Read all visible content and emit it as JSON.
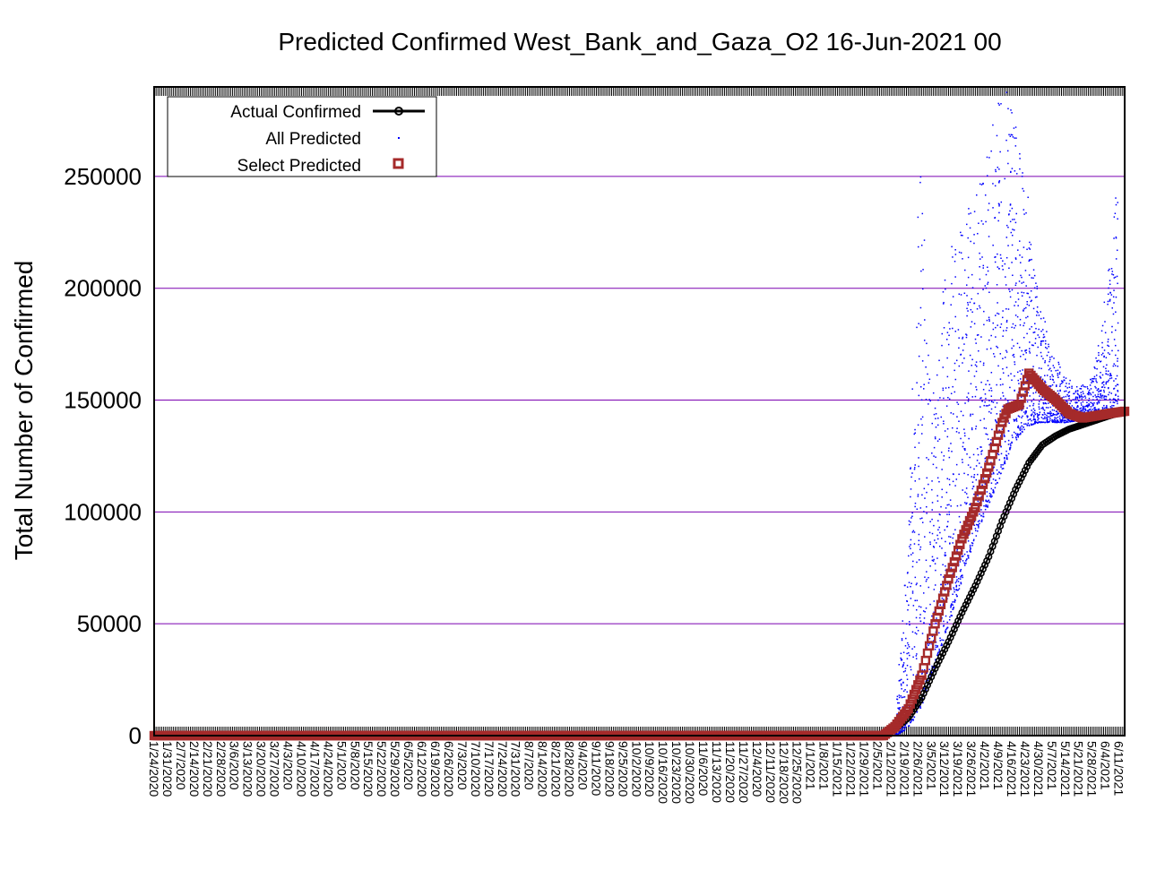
{
  "chart_data": {
    "type": "scatter",
    "title": "Predicted Confirmed West_Bank_and_Gaza_O2 16-Jun-2021 00",
    "ylabel": "Total Number of Confirmed",
    "xlabel": "",
    "ylim": [
      0,
      290000
    ],
    "x_range": [
      "1/24/2020",
      "6/14/2021"
    ],
    "yticks": [
      0,
      50000,
      100000,
      150000,
      200000,
      250000
    ],
    "grid": "horizontal",
    "grid_color": "#7a00b0",
    "legend_position": "top-left",
    "x_tick_labels": [
      "1/24/2020",
      "1/31/2020",
      "2/7/2020",
      "2/14/2020",
      "2/21/2020",
      "2/28/2020",
      "3/6/2020",
      "3/13/2020",
      "3/20/2020",
      "3/27/2020",
      "4/3/2020",
      "4/10/2020",
      "4/17/2020",
      "4/24/2020",
      "5/1/2020",
      "5/8/2020",
      "5/15/2020",
      "5/22/2020",
      "5/29/2020",
      "6/5/2020",
      "6/12/2020",
      "6/19/2020",
      "6/26/2020",
      "7/3/2020",
      "7/10/2020",
      "7/17/2020",
      "7/24/2020",
      "7/31/2020",
      "8/7/2020",
      "8/14/2020",
      "8/21/2020",
      "8/28/2020",
      "9/4/2020",
      "9/11/2020",
      "9/18/2020",
      "9/25/2020",
      "10/2/2020",
      "10/9/2020",
      "10/16/2020",
      "10/23/2020",
      "10/30/2020",
      "11/6/2020",
      "11/13/2020",
      "11/20/2020",
      "11/27/2020",
      "12/4/2020",
      "12/11/2020",
      "12/18/2020",
      "12/25/2020",
      "1/1/2021",
      "1/8/2021",
      "1/15/2021",
      "1/22/2021",
      "1/29/2021",
      "2/5/2021",
      "2/12/2021",
      "2/19/2021",
      "2/26/2021",
      "3/5/2021",
      "3/12/2021",
      "3/19/2021",
      "3/26/2021",
      "4/2/2021",
      "4/9/2021",
      "4/16/2021",
      "4/23/2021",
      "4/30/2021",
      "5/7/2021",
      "5/14/2021",
      "5/21/2021",
      "5/28/2021",
      "6/4/2021",
      "6/11/2021"
    ],
    "series": [
      {
        "name": "Actual Confirmed",
        "color": "#000000",
        "marker": "circle-line",
        "points": [
          [
            "1/24/2020",
            0
          ],
          [
            "2/7/2021",
            0
          ],
          [
            "2/14/2021",
            3000
          ],
          [
            "2/21/2021",
            8000
          ],
          [
            "2/28/2021",
            17000
          ],
          [
            "3/7/2021",
            30000
          ],
          [
            "3/14/2021",
            42000
          ],
          [
            "3/21/2021",
            55000
          ],
          [
            "3/28/2021",
            67000
          ],
          [
            "4/4/2021",
            80000
          ],
          [
            "4/11/2021",
            96000
          ],
          [
            "4/18/2021",
            110000
          ],
          [
            "4/25/2021",
            122000
          ],
          [
            "5/2/2021",
            130000
          ],
          [
            "5/9/2021",
            134000
          ],
          [
            "5/16/2021",
            137000
          ],
          [
            "5/23/2021",
            139000
          ],
          [
            "5/30/2021",
            141000
          ],
          [
            "6/6/2021",
            143000
          ],
          [
            "6/14/2021",
            145000
          ]
        ]
      },
      {
        "name": "All Predicted",
        "color": "#0000ff",
        "marker": "dot",
        "envelope": [
          [
            "2/14/2021",
            0,
            8000
          ],
          [
            "2/20/2021",
            3000,
            80000
          ],
          [
            "2/27/2021",
            12000,
            260000
          ],
          [
            "3/5/2021",
            28000,
            150000
          ],
          [
            "3/12/2021",
            45000,
            210000
          ],
          [
            "3/19/2021",
            65000,
            230000
          ],
          [
            "3/26/2021",
            85000,
            240000
          ],
          [
            "4/2/2021",
            100000,
            260000
          ],
          [
            "4/9/2021",
            115000,
            285000
          ],
          [
            "4/16/2021",
            130000,
            290000
          ],
          [
            "4/23/2021",
            138000,
            250000
          ],
          [
            "4/30/2021",
            140000,
            195000
          ],
          [
            "5/7/2021",
            140000,
            172000
          ],
          [
            "5/14/2021",
            140000,
            160000
          ],
          [
            "5/21/2021",
            141000,
            156000
          ],
          [
            "5/28/2021",
            142000,
            160000
          ],
          [
            "6/4/2021",
            143000,
            200000
          ],
          [
            "6/11/2021",
            144000,
            260000
          ]
        ]
      },
      {
        "name": "Select Predicted",
        "color": "#a52a2a",
        "marker": "open-square",
        "points": [
          [
            "1/24/2020",
            0
          ],
          [
            "2/8/2021",
            0
          ],
          [
            "2/14/2021",
            4000
          ],
          [
            "2/21/2021",
            12000
          ],
          [
            "2/28/2021",
            27000
          ],
          [
            "3/7/2021",
            50000
          ],
          [
            "3/14/2021",
            70000
          ],
          [
            "3/21/2021",
            88000
          ],
          [
            "3/28/2021",
            102000
          ],
          [
            "4/4/2021",
            120000
          ],
          [
            "4/11/2021",
            140000
          ],
          [
            "4/14/2021",
            146000
          ],
          [
            "4/20/2021",
            148000
          ],
          [
            "4/25/2021",
            162000
          ],
          [
            "5/2/2021",
            155000
          ],
          [
            "5/9/2021",
            150000
          ],
          [
            "5/16/2021",
            144000
          ],
          [
            "5/23/2021",
            142000
          ],
          [
            "5/30/2021",
            143000
          ],
          [
            "6/6/2021",
            144000
          ],
          [
            "6/14/2021",
            145000
          ]
        ]
      }
    ]
  }
}
